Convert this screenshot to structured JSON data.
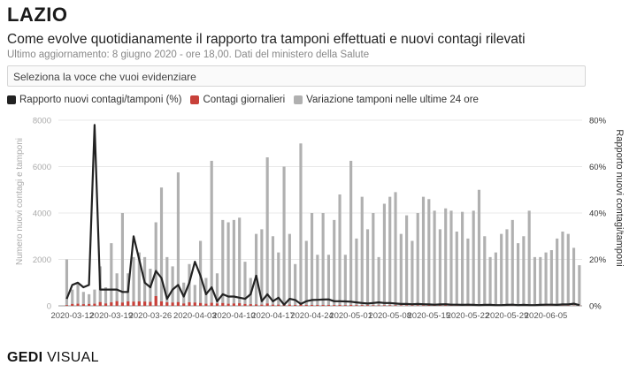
{
  "header": {
    "title": "LAZIO",
    "subtitle": "Come evolve quotidianamente il rapporto tra tamponi effettuati e nuovi contagi rilevati",
    "update": "Ultimo aggiornamento: 8 giugno 2020 - ore 18,00. Dati del ministero della Salute"
  },
  "selector": {
    "placeholder": "Seleziona la voce che vuoi evidenziare"
  },
  "legend": {
    "ratio": "Rapporto nuovi contagi/tamponi (%)",
    "cases": "Contagi giornalieri",
    "tests": "Variazione tamponi nelle ultime 24 ore"
  },
  "brand": {
    "bold": "GEDI",
    "light": " VISUAL"
  },
  "colors": {
    "tests": "#b0b0b0",
    "cases": "#c8413a",
    "ratio": "#222222",
    "grid": "#e8e8e8",
    "axis": "#999999"
  },
  "chart_data": {
    "type": "bar",
    "title": "Come evolve quotidianamente il rapporto tra tamponi effettuati e nuovi contagi rilevati",
    "xlabel": "",
    "ylabel": "Numero nuovi contagi e tamponi",
    "y2label": "Rapporto nuovi contagi/tamponi",
    "ylim": [
      0,
      8000
    ],
    "y2lim": [
      0,
      80
    ],
    "yticks": [
      "0",
      "2000",
      "4000",
      "6000",
      "8000"
    ],
    "y2ticks": [
      "0%",
      "20%",
      "40%",
      "60%",
      "80%"
    ],
    "xticks": [
      "2020-03-12",
      "2020-03-19",
      "2020-03-26",
      "2020-04-03",
      "2020-04-10",
      "2020-04-17",
      "2020-04-24",
      "2020-05-01",
      "2020-05-08",
      "2020-05-15",
      "2020-05-22",
      "2020-05-29",
      "2020-06-05"
    ],
    "start_date": "2020-03-10",
    "series": [
      {
        "name": "Variazione tamponi nelle ultime 24 ore",
        "kind": "bar",
        "values": [
          0,
          2000,
          700,
          1000,
          600,
          500,
          700,
          1700,
          800,
          2700,
          1400,
          4000,
          1400,
          2100,
          2300,
          2100,
          1600,
          3600,
          5100,
          2100,
          1700,
          5750,
          1000,
          1800,
          900,
          2800,
          1200,
          6250,
          1400,
          3700,
          3600,
          3700,
          3800,
          1900,
          1200,
          3100,
          3300,
          6400,
          3000,
          2300,
          6000,
          3100,
          1800,
          7000,
          2800,
          4000,
          2200,
          4000,
          2200,
          3700,
          4800,
          2200,
          6250,
          2900,
          4700,
          3300,
          4000,
          2100,
          4400,
          4700,
          4900,
          3100,
          3900,
          2800,
          4000,
          4700,
          4600,
          4100,
          3300,
          4200,
          4100,
          3200,
          4050,
          2900,
          4100,
          5000,
          3000,
          2100,
          2300,
          3100,
          3300,
          3700,
          2700,
          3000,
          4100,
          2100,
          2100,
          2300,
          2400,
          2900,
          3200,
          3100,
          2500,
          1750
        ]
      },
      {
        "name": "Contagi giornalieri",
        "kind": "bar",
        "values": [
          0,
          30,
          80,
          90,
          70,
          80,
          90,
          160,
          100,
          150,
          200,
          140,
          190,
          180,
          190,
          180,
          170,
          420,
          190,
          150,
          140,
          160,
          100,
          150,
          140,
          120,
          90,
          130,
          100,
          120,
          90,
          100,
          110,
          80,
          70,
          60,
          50,
          100,
          50,
          50,
          60,
          50,
          40,
          60,
          40,
          40,
          40,
          40,
          40,
          35,
          40,
          30,
          40,
          30,
          30,
          30,
          25,
          20,
          25,
          25,
          25,
          20,
          20,
          20,
          20,
          20,
          20,
          20,
          15,
          20,
          15,
          15,
          15,
          15,
          15,
          15,
          10,
          10,
          10,
          10,
          10,
          10,
          10,
          10,
          10,
          10,
          10,
          10,
          10,
          10,
          10,
          10,
          10,
          10
        ]
      },
      {
        "name": "Rapporto nuovi contagi/tamponi (%)",
        "kind": "line",
        "values": [
          null,
          3,
          9,
          10,
          8,
          9,
          78,
          7,
          7,
          7,
          7,
          6,
          6,
          30,
          20,
          10,
          8,
          15,
          12,
          3,
          7,
          9,
          4,
          10,
          19,
          13,
          5,
          8,
          2,
          5,
          4,
          4,
          3.5,
          3,
          5,
          13,
          2,
          5,
          2,
          3.5,
          0.5,
          3,
          2.5,
          0.8,
          2,
          2.5,
          2.6,
          2.7,
          2.8,
          2,
          2,
          1.9,
          1.8,
          1.5,
          1.2,
          1,
          1.2,
          1.5,
          1.2,
          1.2,
          1,
          0.8,
          0.8,
          0.7,
          0.8,
          0.7,
          0.6,
          0.5,
          0.6,
          0.7,
          0.5,
          0.5,
          0.4,
          0.5,
          0.4,
          0.3,
          0.4,
          0.4,
          0.3,
          0.3,
          0.4,
          0.5,
          0.3,
          0.4,
          0.3,
          0.3,
          0.4,
          0.5,
          0.5,
          0.4,
          0.6,
          0.6,
          0.9,
          0.3
        ]
      }
    ]
  }
}
